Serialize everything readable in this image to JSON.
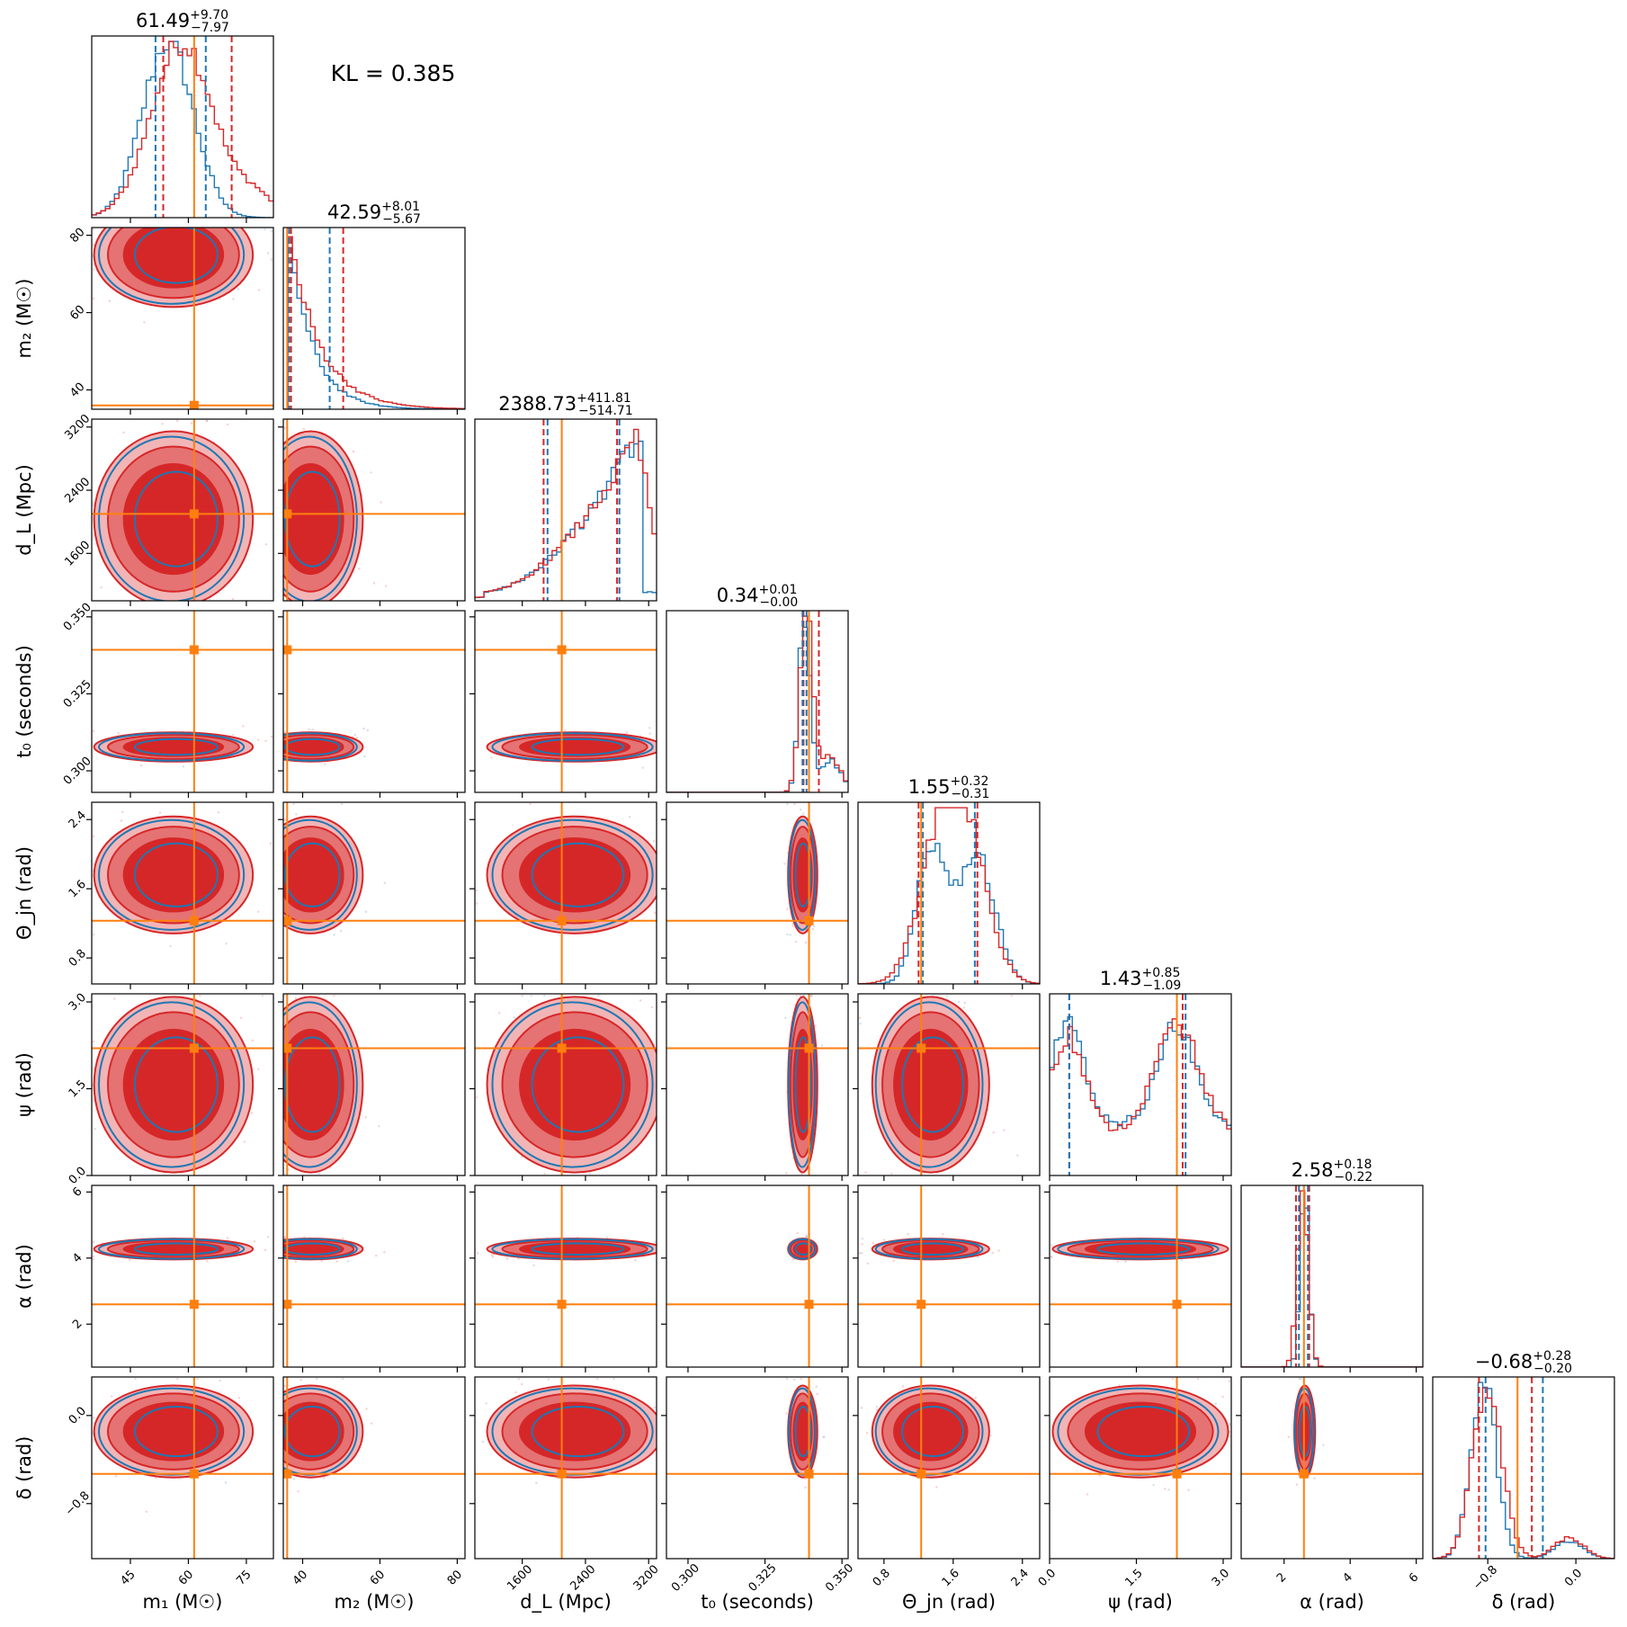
{
  "annotation": {
    "kl_text": "KL = 0.385"
  },
  "colors": {
    "series_a": "#d62728",
    "series_b": "#1f77b4",
    "truth": "#ff7f0e",
    "fill_outer": "#f2b5b6",
    "fill_mid": "#e57373"
  },
  "chart_data": {
    "type": "corner",
    "legend": "none",
    "grid": false,
    "series": [
      {
        "color": "#d62728"
      },
      {
        "color": "#1f77b4"
      }
    ],
    "parameters": [
      {
        "label": "m₁ (M☉)",
        "range": [
          35,
          82
        ],
        "ticks": [
          "45",
          "60",
          "75"
        ],
        "tick_values": [
          45,
          60,
          75
        ],
        "truth": 61.49,
        "title_value": "61.49",
        "title_plus": "+9.70",
        "title_minus": "−7.97"
      },
      {
        "label": "m₂ (M☉)",
        "range": [
          35,
          82
        ],
        "ticks": [
          "40",
          "60",
          "80"
        ],
        "tick_values": [
          40,
          60,
          80
        ],
        "truth": 36.0,
        "title_value": "42.59",
        "title_plus": "+8.01",
        "title_minus": "−5.67"
      },
      {
        "label": "d_L (Mpc)",
        "range": [
          1000,
          3300
        ],
        "ticks": [
          "1600",
          "2400",
          "3200"
        ],
        "tick_values": [
          1600,
          2400,
          3200
        ],
        "truth": 2100,
        "title_value": "2388.73",
        "title_plus": "+411.81",
        "title_minus": "−514.71"
      },
      {
        "label": "t₀ (seconds)",
        "range": [
          0.293,
          0.352
        ],
        "ticks": [
          "0.300",
          "0.325",
          "0.350"
        ],
        "tick_values": [
          0.3,
          0.325,
          0.35
        ],
        "truth": 0.3393,
        "title_value": "0.34",
        "title_plus": "+0.01",
        "title_minus": "−0.00"
      },
      {
        "label": "Θ_jn (rad)",
        "range": [
          0.5,
          2.6
        ],
        "ticks": [
          "0.8",
          "1.6",
          "2.4"
        ],
        "tick_values": [
          0.8,
          1.6,
          2.4
        ],
        "truth": 1.23,
        "title_value": "1.55",
        "title_plus": "+0.32",
        "title_minus": "−0.31"
      },
      {
        "label": "ψ (rad)",
        "range": [
          0,
          3.14
        ],
        "ticks": [
          "0.0",
          "1.5",
          "3.0"
        ],
        "tick_values": [
          0,
          1.5,
          3.0
        ],
        "truth": 2.2,
        "title_value": "1.43",
        "title_plus": "+0.85",
        "title_minus": "−1.09"
      },
      {
        "label": "α (rad)",
        "range": [
          0.7,
          6.2
        ],
        "ticks": [
          "2",
          "4",
          "6"
        ],
        "tick_values": [
          2,
          4,
          6
        ],
        "truth": 2.6,
        "title_value": "2.58",
        "title_plus": "+0.18",
        "title_minus": "−0.22"
      },
      {
        "label": "δ (rad)",
        "range": [
          -1.3,
          0.35
        ],
        "ticks": [
          "−0.8",
          "0.0"
        ],
        "tick_values": [
          -0.8,
          0.0
        ],
        "truth": -0.53,
        "title_value": "−0.68",
        "title_plus": "+0.28",
        "title_minus": "−0.20"
      }
    ],
    "quantiles": {
      "series_a": [
        [
          53.5,
          71.2
        ],
        [
          37.0,
          50.5
        ],
        [
          1870,
          2800
        ],
        [
          0.3375,
          0.3425
        ],
        [
          1.2,
          1.88
        ],
        [
          0.34,
          2.3
        ],
        [
          2.36,
          2.76
        ],
        [
          -0.88,
          -0.4
        ]
      ],
      "series_b": [
        [
          51.5,
          64.5
        ],
        [
          36.5,
          47.0
        ],
        [
          1920,
          2830
        ],
        [
          0.3372,
          0.3385
        ],
        [
          1.25,
          1.85
        ],
        [
          0.34,
          2.35
        ],
        [
          2.45,
          2.72
        ],
        [
          -0.82,
          -0.3
        ]
      ]
    }
  }
}
